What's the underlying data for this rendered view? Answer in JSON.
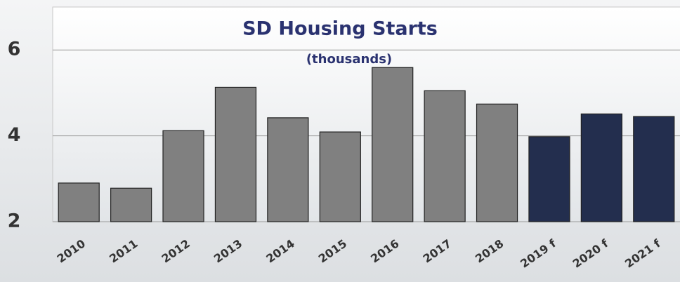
{
  "chart_data": {
    "type": "bar",
    "title": "SD Housing Starts",
    "subtitle": "(thousands)",
    "categories": [
      "2010",
      "2011",
      "2012",
      "2013",
      "2014",
      "2015",
      "2016",
      "2017",
      "2018",
      "2019 f",
      "2020 f",
      "2021 f"
    ],
    "values": [
      2.9,
      2.78,
      4.12,
      5.13,
      4.42,
      4.09,
      5.59,
      5.05,
      4.74,
      3.98,
      4.51,
      4.45
    ],
    "colors": [
      "#808080",
      "#808080",
      "#808080",
      "#808080",
      "#808080",
      "#808080",
      "#808080",
      "#808080",
      "#808080",
      "#232e4e",
      "#232e4e",
      "#232e4e"
    ],
    "ylim": [
      2,
      7
    ],
    "yticks": [
      2,
      4,
      6
    ],
    "grid": true
  }
}
